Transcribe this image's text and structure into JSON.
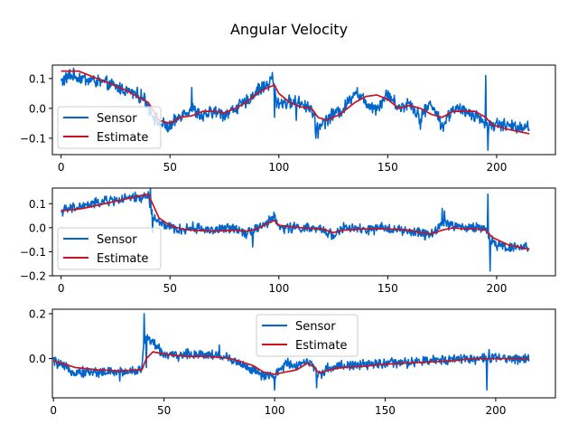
{
  "figure": {
    "title": "Angular Velocity"
  },
  "colors": {
    "sensor": "#0066cc",
    "estimate": "#cc1122"
  },
  "chart_data": [
    {
      "type": "line",
      "xlim": [
        -4,
        227
      ],
      "ylim": [
        -0.155,
        0.145
      ],
      "xticks": [
        0,
        50,
        100,
        150,
        200
      ],
      "yticks": [
        0.1,
        0.0,
        -0.1
      ],
      "ytick_labels": [
        "0.1",
        "0.0",
        "−0.1"
      ],
      "legend_position": "lower-left",
      "series": [
        {
          "name": "Sensor",
          "anchors": [
            [
              0,
              0.09
            ],
            [
              5,
              0.11
            ],
            [
              10,
              0.1
            ],
            [
              20,
              0.085
            ],
            [
              30,
              0.06
            ],
            [
              38,
              0.035
            ],
            [
              42,
              -0.02
            ],
            [
              45,
              -0.05
            ],
            [
              50,
              -0.065
            ],
            [
              55,
              -0.02
            ],
            [
              60,
              0.0
            ],
            [
              65,
              -0.03
            ],
            [
              70,
              -0.01
            ],
            [
              75,
              -0.02
            ],
            [
              80,
              0.0
            ],
            [
              85,
              0.02
            ],
            [
              90,
              0.06
            ],
            [
              95,
              0.08
            ],
            [
              97,
              0.1
            ],
            [
              99,
              0.02
            ],
            [
              100,
              0.02
            ],
            [
              110,
              0.02
            ],
            [
              115,
              0.0
            ],
            [
              117,
              -0.06
            ],
            [
              120,
              -0.05
            ],
            [
              125,
              -0.02
            ],
            [
              130,
              0.0
            ],
            [
              135,
              0.06
            ],
            [
              140,
              0.02
            ],
            [
              145,
              0.0
            ],
            [
              150,
              0.05
            ],
            [
              155,
              0.0
            ],
            [
              160,
              0.02
            ],
            [
              165,
              -0.03
            ],
            [
              170,
              0.02
            ],
            [
              175,
              -0.06
            ],
            [
              180,
              0.0
            ],
            [
              185,
              -0.01
            ],
            [
              190,
              -0.02
            ],
            [
              195,
              -0.05
            ],
            [
              197,
              -0.06
            ],
            [
              200,
              -0.05
            ],
            [
              205,
              -0.06
            ],
            [
              215,
              -0.06
            ]
          ],
          "noise": 0.018,
          "spikes": [
            [
              4,
              0.13
            ],
            [
              97,
              0.12
            ],
            [
              98,
              -0.03
            ],
            [
              117,
              -0.1
            ],
            [
              118,
              -0.1
            ],
            [
              195,
              0.11
            ],
            [
              196,
              -0.14
            ],
            [
              60,
              0.07
            ],
            [
              108,
              -0.04
            ],
            [
              165,
              -0.07
            ]
          ]
        },
        {
          "name": "Estimate",
          "anchors": [
            [
              0,
              0.125
            ],
            [
              8,
              0.125
            ],
            [
              20,
              0.09
            ],
            [
              30,
              0.06
            ],
            [
              40,
              0.02
            ],
            [
              45,
              -0.04
            ],
            [
              50,
              -0.05
            ],
            [
              55,
              -0.03
            ],
            [
              60,
              -0.025
            ],
            [
              65,
              -0.01
            ],
            [
              70,
              -0.01
            ],
            [
              75,
              -0.015
            ],
            [
              80,
              0.0
            ],
            [
              85,
              0.02
            ],
            [
              90,
              0.05
            ],
            [
              95,
              0.07
            ],
            [
              98,
              0.078
            ],
            [
              100,
              0.05
            ],
            [
              105,
              0.02
            ],
            [
              110,
              0.005
            ],
            [
              115,
              0.0
            ],
            [
              118,
              -0.03
            ],
            [
              122,
              -0.04
            ],
            [
              128,
              -0.02
            ],
            [
              135,
              0.02
            ],
            [
              140,
              0.04
            ],
            [
              145,
              0.045
            ],
            [
              150,
              0.03
            ],
            [
              155,
              0.0
            ],
            [
              160,
              0.01
            ],
            [
              165,
              0.0
            ],
            [
              170,
              -0.02
            ],
            [
              175,
              -0.03
            ],
            [
              180,
              -0.01
            ],
            [
              185,
              -0.01
            ],
            [
              190,
              -0.01
            ],
            [
              195,
              -0.03
            ],
            [
              198,
              -0.055
            ],
            [
              205,
              -0.07
            ],
            [
              215,
              -0.085
            ]
          ]
        }
      ]
    },
    {
      "type": "line",
      "xlim": [
        -4,
        227
      ],
      "ylim": [
        -0.2,
        0.165
      ],
      "xticks": [
        0,
        50,
        100,
        150,
        200
      ],
      "yticks": [
        0.1,
        0.0,
        -0.1,
        -0.2
      ],
      "ytick_labels": [
        "0.1",
        "0.0",
        "−0.1",
        "−0.2"
      ],
      "legend_position": "lower-left",
      "series": [
        {
          "name": "Sensor",
          "anchors": [
            [
              0,
              0.07
            ],
            [
              10,
              0.09
            ],
            [
              20,
              0.11
            ],
            [
              30,
              0.12
            ],
            [
              40,
              0.13
            ],
            [
              42,
              0.05
            ],
            [
              45,
              0.02
            ],
            [
              50,
              0.0
            ],
            [
              55,
              -0.01
            ],
            [
              60,
              0.0
            ],
            [
              70,
              -0.01
            ],
            [
              80,
              0.0
            ],
            [
              85,
              -0.02
            ],
            [
              90,
              0.0
            ],
            [
              95,
              0.02
            ],
            [
              98,
              0.05
            ],
            [
              100,
              0.0
            ],
            [
              110,
              0.0
            ],
            [
              120,
              -0.01
            ],
            [
              125,
              -0.03
            ],
            [
              130,
              0.0
            ],
            [
              140,
              -0.01
            ],
            [
              150,
              0.0
            ],
            [
              160,
              -0.02
            ],
            [
              165,
              -0.02
            ],
            [
              170,
              -0.03
            ],
            [
              175,
              0.02
            ],
            [
              180,
              0.01
            ],
            [
              185,
              0.0
            ],
            [
              195,
              0.0
            ],
            [
              197,
              -0.05
            ],
            [
              200,
              -0.07
            ],
            [
              205,
              -0.08
            ],
            [
              215,
              -0.08
            ]
          ],
          "noise": 0.017,
          "spikes": [
            [
              40,
              0.15
            ],
            [
              41,
              0.17
            ],
            [
              42,
              -0.02
            ],
            [
              175,
              0.08
            ],
            [
              176,
              0.07
            ],
            [
              196,
              0.14
            ],
            [
              197,
              -0.18
            ],
            [
              88,
              -0.08
            ],
            [
              167,
              -0.05
            ]
          ]
        },
        {
          "name": "Estimate",
          "anchors": [
            [
              0,
              0.07
            ],
            [
              10,
              0.08
            ],
            [
              20,
              0.1
            ],
            [
              30,
              0.12
            ],
            [
              40,
              0.14
            ],
            [
              42,
              0.1
            ],
            [
              45,
              0.04
            ],
            [
              50,
              0.01
            ],
            [
              55,
              -0.005
            ],
            [
              60,
              -0.01
            ],
            [
              70,
              -0.015
            ],
            [
              80,
              -0.01
            ],
            [
              85,
              -0.015
            ],
            [
              90,
              -0.005
            ],
            [
              95,
              0.02
            ],
            [
              98,
              0.03
            ],
            [
              100,
              0.01
            ],
            [
              110,
              0.0
            ],
            [
              120,
              -0.005
            ],
            [
              125,
              -0.02
            ],
            [
              130,
              -0.01
            ],
            [
              140,
              -0.005
            ],
            [
              150,
              -0.005
            ],
            [
              160,
              -0.01
            ],
            [
              165,
              -0.02
            ],
            [
              170,
              -0.025
            ],
            [
              175,
              -0.01
            ],
            [
              180,
              0.0
            ],
            [
              185,
              -0.005
            ],
            [
              190,
              -0.005
            ],
            [
              195,
              -0.01
            ],
            [
              198,
              -0.04
            ],
            [
              205,
              -0.07
            ],
            [
              215,
              -0.09
            ]
          ]
        }
      ]
    },
    {
      "type": "line",
      "xlim": [
        -0.5,
        227
      ],
      "ylim": [
        -0.175,
        0.22
      ],
      "xticks": [
        0,
        50,
        100,
        150,
        200
      ],
      "yticks": [
        0.2,
        0.0
      ],
      "ytick_labels": [
        "0.2",
        "0.0"
      ],
      "legend_position": "upper-center",
      "series": [
        {
          "name": "Sensor",
          "anchors": [
            [
              0,
              -0.01
            ],
            [
              5,
              -0.04
            ],
            [
              10,
              -0.06
            ],
            [
              20,
              -0.06
            ],
            [
              30,
              -0.06
            ],
            [
              40,
              -0.05
            ],
            [
              41,
              0.08
            ],
            [
              42,
              0.1
            ],
            [
              45,
              0.07
            ],
            [
              50,
              0.02
            ],
            [
              55,
              0.01
            ],
            [
              60,
              0.02
            ],
            [
              70,
              0.02
            ],
            [
              80,
              0.0
            ],
            [
              90,
              -0.05
            ],
            [
              95,
              -0.08
            ],
            [
              100,
              -0.08
            ],
            [
              105,
              -0.02
            ],
            [
              110,
              -0.03
            ],
            [
              115,
              -0.01
            ],
            [
              120,
              -0.07
            ],
            [
              125,
              -0.04
            ],
            [
              130,
              -0.03
            ],
            [
              140,
              -0.03
            ],
            [
              150,
              -0.02
            ],
            [
              160,
              -0.02
            ],
            [
              170,
              -0.01
            ],
            [
              180,
              0.0
            ],
            [
              190,
              0.0
            ],
            [
              195,
              0.0
            ],
            [
              200,
              0.0
            ],
            [
              215,
              0.0
            ]
          ],
          "noise": 0.018,
          "spikes": [
            [
              41,
              0.2
            ],
            [
              42,
              -0.04
            ],
            [
              100,
              -0.14
            ],
            [
              119,
              -0.13
            ],
            [
              196,
              -0.14
            ],
            [
              197,
              0.04
            ],
            [
              30,
              -0.1
            ],
            [
              75,
              0.06
            ]
          ]
        },
        {
          "name": "Estimate",
          "anchors": [
            [
              0,
              -0.01
            ],
            [
              10,
              -0.04
            ],
            [
              20,
              -0.05
            ],
            [
              30,
              -0.055
            ],
            [
              40,
              -0.05
            ],
            [
              42,
              0.0
            ],
            [
              45,
              0.03
            ],
            [
              50,
              0.02
            ],
            [
              55,
              0.015
            ],
            [
              60,
              0.01
            ],
            [
              70,
              0.01
            ],
            [
              80,
              0.0
            ],
            [
              90,
              -0.03
            ],
            [
              95,
              -0.06
            ],
            [
              100,
              -0.07
            ],
            [
              105,
              -0.06
            ],
            [
              110,
              -0.05
            ],
            [
              115,
              -0.02
            ],
            [
              118,
              -0.04
            ],
            [
              120,
              -0.065
            ],
            [
              125,
              -0.05
            ],
            [
              130,
              -0.04
            ],
            [
              140,
              -0.035
            ],
            [
              150,
              -0.025
            ],
            [
              160,
              -0.02
            ],
            [
              170,
              -0.015
            ],
            [
              180,
              -0.01
            ],
            [
              190,
              0.0
            ],
            [
              195,
              0.0
            ],
            [
              200,
              0.0
            ],
            [
              215,
              0.0
            ]
          ]
        }
      ]
    }
  ]
}
